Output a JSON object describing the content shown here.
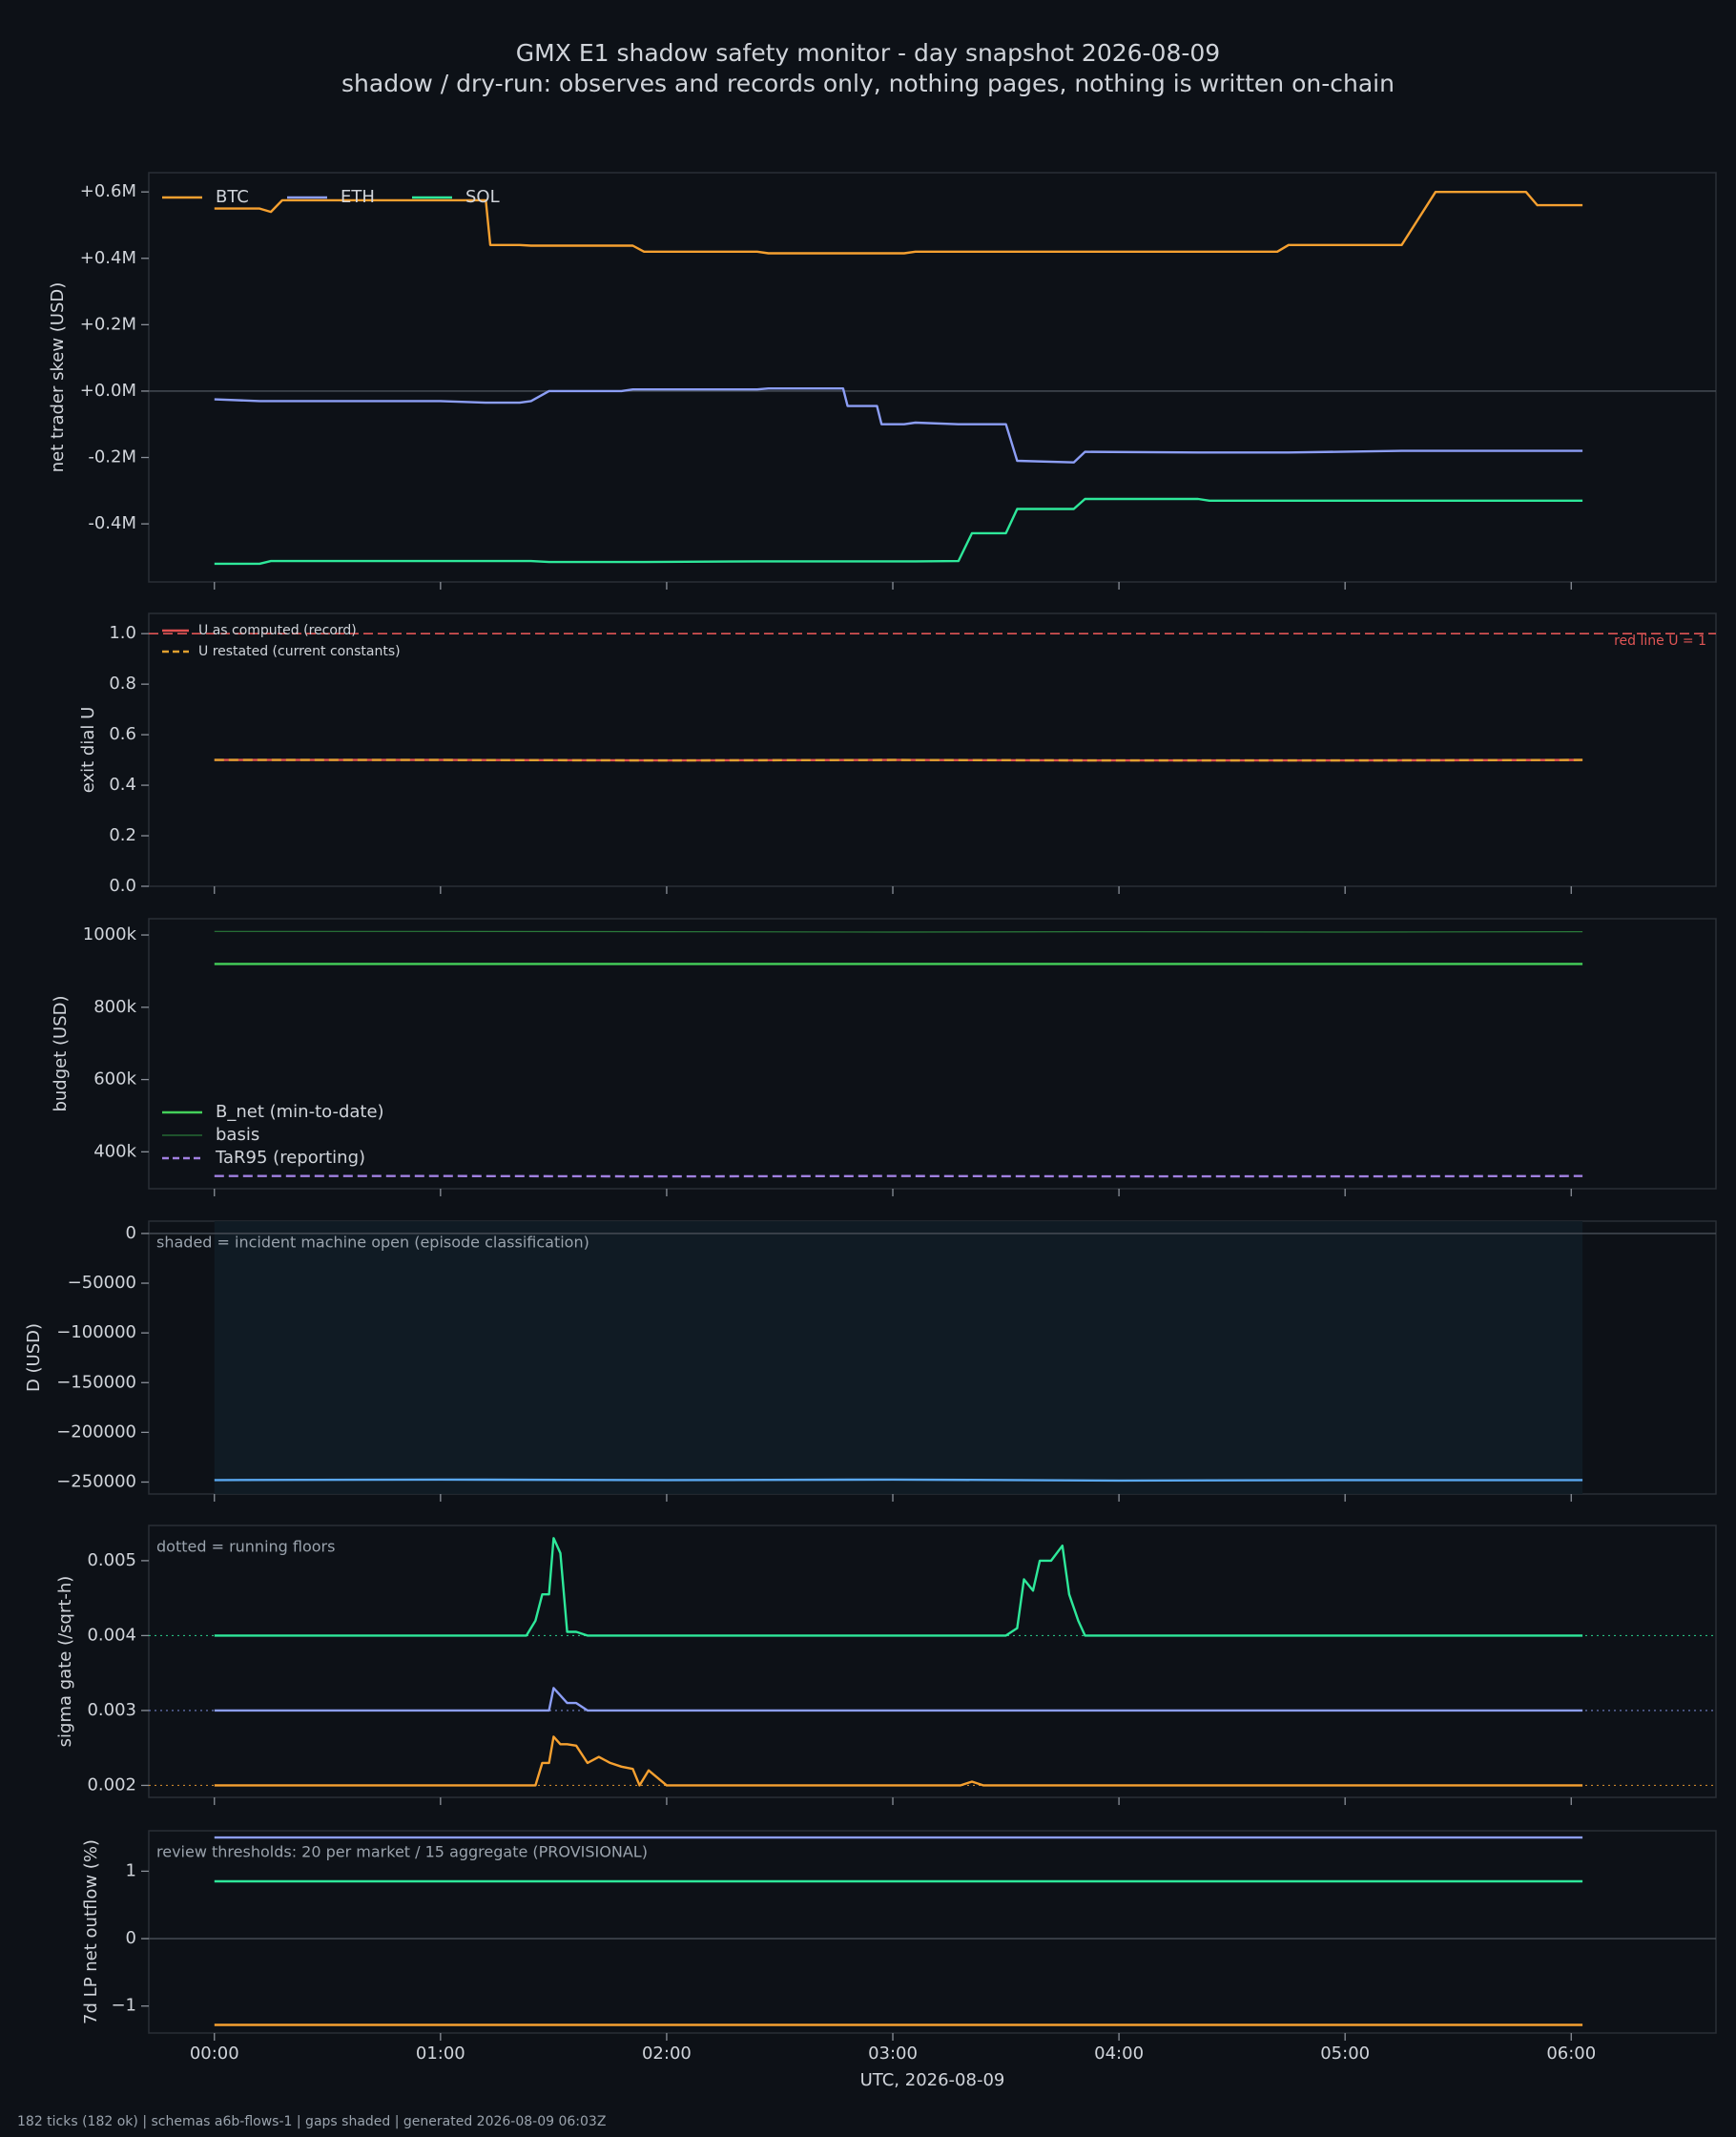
{
  "title": "GMX E1 shadow safety monitor - day snapshot 2026-08-09",
  "subtitle": "shadow / dry-run: observes and records only, nothing pages, nothing is written on-chain",
  "footer": "182 ticks (182 ok) | schemas a6b-flows-1 | gaps shaded | generated 2026-08-09 06:03Z",
  "chart_data": [
    {
      "type": "line",
      "ylabel": "net trader skew (USD)",
      "legend": "upper left",
      "legend_ncol": 3,
      "hline": 0,
      "x": [
        0,
        0.2,
        0.25,
        0.3,
        1.0,
        1.2,
        1.22,
        1.35,
        1.4,
        1.48,
        1.8,
        1.85,
        1.9,
        2.4,
        2.45,
        2.78,
        2.8,
        2.93,
        2.95,
        3.05,
        3.1,
        3.29,
        3.35,
        3.5,
        3.55,
        3.8,
        3.85,
        4.35,
        4.4,
        4.7,
        4.75,
        5.25,
        5.4,
        5.8,
        5.85,
        6.05
      ],
      "series": [
        {
          "name": "BTC",
          "color": "#f5a030",
          "values": [
            550000,
            550000,
            540000,
            575000,
            575000,
            575000,
            440000,
            440000,
            438000,
            438000,
            438000,
            438000,
            420000,
            420000,
            415000,
            415000,
            415000,
            415000,
            415000,
            415000,
            420000,
            420000,
            420000,
            420000,
            420000,
            420000,
            420000,
            420000,
            420000,
            420000,
            440000,
            440000,
            600000,
            600000,
            560000,
            560000
          ]
        },
        {
          "name": "ETH",
          "color": "#8c9ef5",
          "values": [
            -25000,
            -30000,
            -30000,
            -30000,
            -30000,
            -35000,
            -35000,
            -35000,
            -30000,
            0,
            0,
            5000,
            5000,
            5000,
            8000,
            8000,
            -45000,
            -45000,
            -100000,
            -100000,
            -95000,
            -100000,
            -100000,
            -100000,
            -210000,
            -215000,
            -183000,
            -185000,
            -185000,
            -185000,
            -185000,
            -180000,
            -180000,
            -180000,
            -180000,
            -180000
          ]
        },
        {
          "name": "SOL",
          "color": "#2ee89a",
          "values": [
            -520000,
            -520000,
            -512000,
            -512000,
            -512000,
            -512000,
            -512000,
            -512000,
            -512000,
            -515000,
            -515000,
            -515000,
            -515000,
            -513000,
            -513000,
            -513000,
            -513000,
            -513000,
            -513000,
            -513000,
            -513000,
            -512000,
            -428000,
            -428000,
            -355000,
            -355000,
            -325000,
            -325000,
            -330000,
            -330000,
            -330000,
            -330000,
            -330000,
            -330000,
            -330000,
            -330000
          ]
        }
      ],
      "ylim": [
        -575000,
        658000
      ],
      "yticks": [
        {
          "value": -400000,
          "label": "-0.4M"
        },
        {
          "value": -200000,
          "label": "-0.2M"
        },
        {
          "value": 0,
          "label": "+0.0M"
        },
        {
          "value": 200000,
          "label": "+0.2M"
        },
        {
          "value": 400000,
          "label": "+0.4M"
        },
        {
          "value": 600000,
          "label": "+0.6M"
        }
      ]
    },
    {
      "type": "line",
      "ylabel": "exit dial U",
      "legend": "upper left",
      "legend_ncol": 1,
      "refline": {
        "value": 1.0,
        "label": "red line U = 1",
        "color": "#e05555"
      },
      "x": [
        0,
        1,
        2,
        3,
        4,
        5,
        6.05
      ],
      "series": [
        {
          "name": "U as computed (record)",
          "color": "#e05050",
          "values": [
            0.5,
            0.5,
            0.498,
            0.5,
            0.498,
            0.498,
            0.5
          ]
        },
        {
          "name": "U restated (current constants)",
          "color": "#e0a030",
          "dash": "dashed",
          "values": [
            0.5,
            0.5,
            0.498,
            0.5,
            0.498,
            0.498,
            0.5
          ]
        }
      ],
      "ylim": [
        0,
        1.08
      ],
      "yticks": [
        {
          "value": 0,
          "label": "0.0"
        },
        0.2,
        0.4,
        0.6,
        0.8,
        {
          "value": 1,
          "label": "1.0"
        }
      ]
    },
    {
      "type": "line",
      "ylabel": "budget (USD)",
      "legend": "lower left",
      "legend_ncol": 1,
      "x": [
        0,
        1,
        2,
        3,
        4,
        5,
        6.05
      ],
      "series": [
        {
          "name": "B_net (min-to-date)",
          "color": "#44d05a",
          "values": [
            920000,
            920000,
            920000,
            920000,
            920000,
            920000,
            920000
          ]
        },
        {
          "name": "basis",
          "color": "#2a7a3a",
          "thin": true,
          "values": [
            1010000,
            1010000,
            1009000,
            1008000,
            1009000,
            1008000,
            1009000
          ]
        },
        {
          "name": "TaR95 (reporting)",
          "color": "#a080e0",
          "dash": "dashed",
          "values": [
            333000,
            333000,
            332000,
            333000,
            332000,
            332000,
            333000
          ]
        }
      ],
      "ylim": [
        298000,
        1045000
      ],
      "yticks": [
        {
          "value": 400000,
          "label": "400k"
        },
        {
          "value": 600000,
          "label": "600k"
        },
        {
          "value": 800000,
          "label": "800k"
        },
        {
          "value": 1000000,
          "label": "1000k"
        }
      ]
    },
    {
      "type": "line",
      "ylabel": "D (USD)",
      "hline": 0,
      "span": [
        0,
        6.05
      ],
      "annotation": "shaded = incident machine open (episode classification)",
      "x": [
        0,
        1,
        2,
        3,
        4,
        5,
        6.05
      ],
      "series": [
        {
          "color": "#5aa8f0",
          "values": [
            -248000,
            -247500,
            -248000,
            -247500,
            -248500,
            -248000,
            -248000
          ]
        }
      ],
      "ylim": [
        -262000,
        12400
      ],
      "yticks": [
        {
          "value": -250000,
          "label": "−250000"
        },
        {
          "value": -200000,
          "label": "−200000"
        },
        {
          "value": -150000,
          "label": "−150000"
        },
        {
          "value": -100000,
          "label": "−100000"
        },
        {
          "value": -50000,
          "label": "−50000"
        },
        0
      ]
    },
    {
      "type": "line",
      "ylabel": "sigma gate (/sqrt-h)",
      "annotation": "dotted = running floors",
      "x": [
        0,
        1.38,
        1.42,
        1.45,
        1.48,
        1.5,
        1.53,
        1.56,
        1.6,
        1.65,
        1.7,
        1.75,
        1.8,
        1.85,
        1.88,
        1.92,
        2.0,
        3.3,
        3.35,
        3.4,
        3.5,
        3.55,
        3.58,
        3.62,
        3.65,
        3.7,
        3.75,
        3.78,
        3.82,
        3.85,
        6.05
      ],
      "series": [
        {
          "color": "#2ee89a",
          "floor": 0.004,
          "values": [
            0.004,
            0.004,
            0.0042,
            0.00455,
            0.00455,
            0.0053,
            0.0051,
            0.00405,
            0.00405,
            0.004,
            0.004,
            0.004,
            0.004,
            0.004,
            0.004,
            0.004,
            0.004,
            0.004,
            0.004,
            0.004,
            0.004,
            0.0041,
            0.00475,
            0.0046,
            0.005,
            0.005,
            0.0052,
            0.00455,
            0.0042,
            0.004,
            0.004
          ]
        },
        {
          "color": "#8c9ef5",
          "floor": 0.003,
          "values": [
            0.003,
            0.003,
            0.003,
            0.003,
            0.003,
            0.0033,
            0.0032,
            0.0031,
            0.0031,
            0.003,
            0.003,
            0.003,
            0.003,
            0.003,
            0.003,
            0.003,
            0.003,
            0.003,
            0.003,
            0.003,
            0.003,
            0.003,
            0.003,
            0.003,
            0.003,
            0.003,
            0.003,
            0.003,
            0.003,
            0.003,
            0.003
          ]
        },
        {
          "color": "#f5a030",
          "floor": 0.002,
          "values": [
            0.002,
            0.002,
            0.002,
            0.0023,
            0.0023,
            0.00265,
            0.00255,
            0.00255,
            0.00253,
            0.0023,
            0.00238,
            0.0023,
            0.00225,
            0.00222,
            0.002,
            0.0022,
            0.002,
            0.002,
            0.00205,
            0.002,
            0.002,
            0.002,
            0.002,
            0.002,
            0.002,
            0.002,
            0.002,
            0.002,
            0.002,
            0.002,
            0.002
          ]
        }
      ],
      "ylim": [
        0.00184,
        0.00547
      ],
      "yticks": [
        0.002,
        0.003,
        0.004,
        0.005
      ]
    },
    {
      "type": "line",
      "ylabel": "7d LP net outflow (%)",
      "hline": 0,
      "annotation": "review thresholds: 20 per market / 15 aggregate (PROVISIONAL)",
      "xlabel": "UTC, 2026-08-09",
      "x": [
        0,
        6.05
      ],
      "series": [
        {
          "color": "#8c9ef5",
          "values": [
            1.5,
            1.5
          ]
        },
        {
          "color": "#2ee89a",
          "values": [
            0.85,
            0.85
          ]
        },
        {
          "color": "#f5a030",
          "values": [
            -1.28,
            -1.28
          ]
        }
      ],
      "ylim": [
        -1.4,
        1.6
      ],
      "yticks": [
        {
          "value": -1,
          "label": "−1"
        },
        0,
        1
      ],
      "xlim": [
        -0.29,
        6.64
      ],
      "xticks": [
        {
          "value": 0,
          "label": "00:00"
        },
        {
          "value": 1,
          "label": "01:00"
        },
        {
          "value": 2,
          "label": "02:00"
        },
        {
          "value": 3,
          "label": "03:00"
        },
        {
          "value": 4,
          "label": "04:00"
        },
        {
          "value": 5,
          "label": "05:00"
        },
        {
          "value": 6,
          "label": "06:00"
        }
      ]
    }
  ]
}
